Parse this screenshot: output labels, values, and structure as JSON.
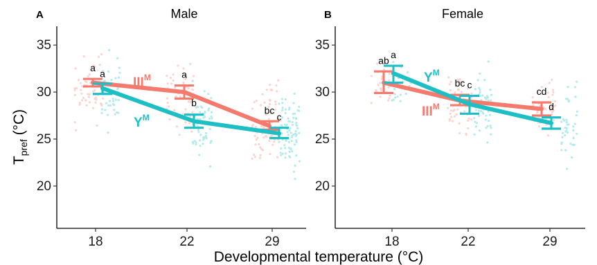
{
  "colors": {
    "III": "#F47A6E",
    "Y": "#1DBFC4",
    "axis": "#000000"
  },
  "ylabel_main": "T",
  "ylabel_sub": "pref",
  "ylabel_unit": " (°C)",
  "xlabel": "Developmental temperature (°C)",
  "chart_data": [
    {
      "type": "line",
      "panel": "A",
      "title": "Male",
      "categories": [
        "18",
        "22",
        "29"
      ],
      "ylim": [
        15.5,
        37
      ],
      "yticks": [
        "20",
        "25",
        "30",
        "35"
      ],
      "series": [
        {
          "key": "III",
          "name": "III",
          "sup": "M",
          "values": [
            31.0,
            30.0,
            26.4
          ],
          "lower": [
            30.6,
            29.3,
            26.0
          ],
          "upper": [
            31.4,
            30.7,
            26.9
          ]
        },
        {
          "key": "Y",
          "name": "Y",
          "sup": "M",
          "values": [
            30.4,
            26.9,
            25.6
          ],
          "lower": [
            29.8,
            26.2,
            25.1
          ],
          "upper": [
            30.9,
            27.6,
            26.2
          ]
        }
      ],
      "letters": [
        {
          "series": "III",
          "cat": "18",
          "text": "a",
          "y": 32.2
        },
        {
          "series": "Y",
          "cat": "18",
          "text": "a",
          "y": 31.6
        },
        {
          "series": "III",
          "cat": "22",
          "text": "a",
          "y": 31.5
        },
        {
          "series": "Y",
          "cat": "22",
          "text": "b",
          "y": 28.5
        },
        {
          "series": "III",
          "cat": "29",
          "text": "bc",
          "y": 27.7
        },
        {
          "series": "Y",
          "cat": "29",
          "text": "c",
          "y": 27.0
        }
      ]
    },
    {
      "type": "line",
      "panel": "B",
      "title": "Female",
      "categories": [
        "18",
        "22",
        "29"
      ],
      "ylim": [
        15.5,
        37
      ],
      "yticks": [
        "20",
        "25",
        "30",
        "35"
      ],
      "series": [
        {
          "key": "III",
          "name": "III",
          "sup": "M",
          "values": [
            31.0,
            29.1,
            28.2
          ],
          "lower": [
            29.9,
            28.6,
            27.5
          ],
          "upper": [
            32.2,
            29.7,
            28.9
          ]
        },
        {
          "key": "Y",
          "name": "Y",
          "sup": "M",
          "values": [
            32.0,
            28.7,
            26.7
          ],
          "lower": [
            31.0,
            27.7,
            26.1
          ],
          "upper": [
            32.8,
            29.6,
            27.3
          ]
        }
      ],
      "letters": [
        {
          "series": "III",
          "cat": "18",
          "text": "ab",
          "y": 33.0
        },
        {
          "series": "Y",
          "cat": "18",
          "text": "a",
          "y": 33.6
        },
        {
          "series": "III",
          "cat": "22",
          "text": "bc",
          "y": 30.6
        },
        {
          "series": "Y",
          "cat": "22",
          "text": "c",
          "y": 30.4
        },
        {
          "series": "III",
          "cat": "29",
          "text": "cd",
          "y": 29.7
        },
        {
          "series": "Y",
          "cat": "29",
          "text": "d",
          "y": 28.1
        }
      ]
    }
  ]
}
